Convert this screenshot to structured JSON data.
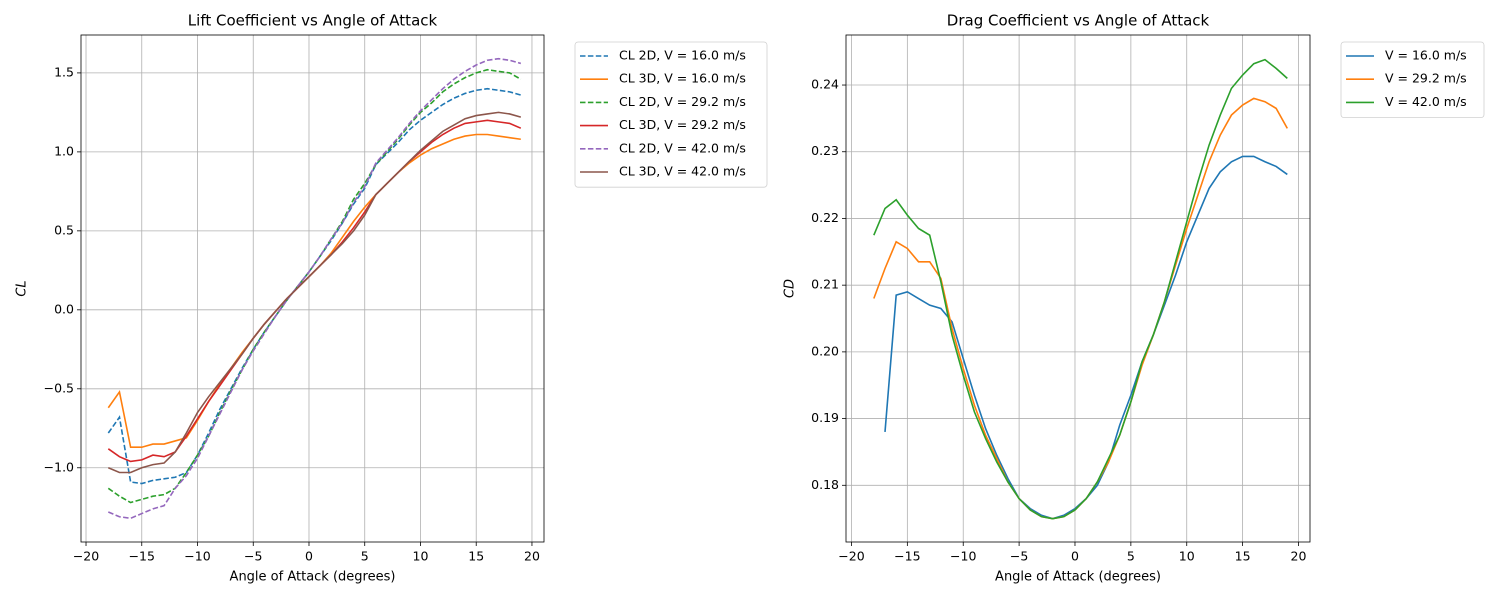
{
  "chart_data": [
    {
      "type": "line",
      "title": "Lift Coefficient vs Angle of Attack",
      "x_label": "Angle of Attack (degrees)",
      "y_label": "CL",
      "grid": true,
      "legend": "outside-right",
      "xlim": [
        -20.45,
        21.08
      ],
      "ylim": [
        -1.47,
        1.74
      ],
      "xticks": [
        {
          "value": -20,
          "label": "−20"
        },
        {
          "value": -15,
          "label": "−15"
        },
        {
          "value": -10,
          "label": "−10"
        },
        {
          "value": -5,
          "label": "−5"
        },
        0,
        5,
        10,
        15,
        20
      ],
      "yticks": [
        {
          "value": -1.0,
          "label": "−1.0"
        },
        {
          "value": -0.5,
          "label": "−0.5"
        },
        {
          "value": 0,
          "label": "0.0"
        },
        0.5,
        {
          "value": 1.0,
          "label": "1.0"
        },
        1.5
      ],
      "x": [
        -18,
        -17,
        -16,
        -15,
        -14,
        -13,
        -12,
        -11,
        -10,
        -9,
        -8,
        -7,
        -6,
        -5,
        -4,
        -3,
        -2,
        -1,
        0,
        1,
        2,
        3,
        4,
        5,
        6,
        7,
        8,
        9,
        10,
        11,
        12,
        13,
        14,
        15,
        16,
        17,
        18,
        19
      ],
      "series": [
        {
          "name": "CL 2D, V = 16.0 m/s",
          "color": "#1f77b4",
          "linestyle": "dashed",
          "values": [
            -0.78,
            -0.68,
            -1.09,
            -1.1,
            -1.08,
            -1.07,
            -1.06,
            -1.03,
            -0.92,
            -0.78,
            -0.63,
            -0.5,
            -0.37,
            -0.25,
            -0.14,
            -0.04,
            0.06,
            0.15,
            0.24,
            0.34,
            0.44,
            0.55,
            0.67,
            0.77,
            0.92,
            0.99,
            1.06,
            1.14,
            1.2,
            1.25,
            1.3,
            1.34,
            1.37,
            1.39,
            1.4,
            1.39,
            1.38,
            1.36
          ]
        },
        {
          "name": "CL 3D, V = 16.0 m/s",
          "color": "#ff7f0e",
          "linestyle": "solid",
          "values": [
            -0.62,
            -0.52,
            -0.87,
            -0.87,
            -0.85,
            -0.85,
            -0.83,
            -0.81,
            -0.7,
            -0.58,
            -0.47,
            -0.37,
            -0.27,
            -0.18,
            -0.09,
            -0.01,
            0.07,
            0.14,
            0.21,
            0.28,
            0.36,
            0.46,
            0.56,
            0.65,
            0.73,
            0.8,
            0.87,
            0.93,
            0.98,
            1.02,
            1.05,
            1.08,
            1.1,
            1.11,
            1.11,
            1.1,
            1.09,
            1.08
          ]
        },
        {
          "name": "CL 2D, V = 29.2 m/s",
          "color": "#2ca02c",
          "linestyle": "dashed",
          "values": [
            -1.13,
            -1.18,
            -1.22,
            -1.2,
            -1.18,
            -1.17,
            -1.13,
            -1.03,
            -0.92,
            -0.8,
            -0.65,
            -0.51,
            -0.38,
            -0.25,
            -0.14,
            -0.04,
            0.06,
            0.15,
            0.24,
            0.34,
            0.45,
            0.56,
            0.7,
            0.8,
            0.92,
            1.0,
            1.08,
            1.17,
            1.25,
            1.31,
            1.38,
            1.43,
            1.47,
            1.5,
            1.52,
            1.51,
            1.5,
            1.46
          ]
        },
        {
          "name": "CL 3D, V = 29.2 m/s",
          "color": "#d62728",
          "linestyle": "solid",
          "values": [
            -0.88,
            -0.93,
            -0.96,
            -0.95,
            -0.92,
            -0.93,
            -0.9,
            -0.8,
            -0.69,
            -0.58,
            -0.48,
            -0.38,
            -0.28,
            -0.18,
            -0.09,
            -0.01,
            0.07,
            0.14,
            0.21,
            0.28,
            0.35,
            0.43,
            0.52,
            0.62,
            0.73,
            0.8,
            0.87,
            0.94,
            1.0,
            1.06,
            1.11,
            1.15,
            1.18,
            1.19,
            1.2,
            1.19,
            1.18,
            1.15
          ]
        },
        {
          "name": "CL 2D, V = 42.0 m/s",
          "color": "#9467bd",
          "linestyle": "dashed",
          "values": [
            -1.28,
            -1.31,
            -1.32,
            -1.29,
            -1.26,
            -1.24,
            -1.13,
            -1.05,
            -0.94,
            -0.8,
            -0.66,
            -0.52,
            -0.38,
            -0.26,
            -0.15,
            -0.04,
            0.06,
            0.15,
            0.24,
            0.34,
            0.45,
            0.55,
            0.68,
            0.78,
            0.93,
            1.01,
            1.09,
            1.18,
            1.26,
            1.33,
            1.4,
            1.46,
            1.51,
            1.55,
            1.58,
            1.59,
            1.58,
            1.56
          ]
        },
        {
          "name": "CL 3D, V = 42.0 m/s",
          "color": "#8c564b",
          "linestyle": "solid",
          "values": [
            -1.0,
            -1.03,
            -1.03,
            -1.0,
            -0.98,
            -0.97,
            -0.9,
            -0.78,
            -0.65,
            -0.55,
            -0.46,
            -0.37,
            -0.28,
            -0.18,
            -0.09,
            -0.01,
            0.07,
            0.14,
            0.21,
            0.28,
            0.35,
            0.42,
            0.5,
            0.6,
            0.73,
            0.8,
            0.87,
            0.94,
            1.01,
            1.07,
            1.13,
            1.17,
            1.21,
            1.23,
            1.24,
            1.25,
            1.24,
            1.22
          ]
        }
      ]
    },
    {
      "type": "line",
      "title": "Drag Coefficient vs Angle of Attack",
      "x_label": "Angle of Attack (degrees)",
      "y_label": "CD",
      "grid": true,
      "legend": "outside-right",
      "xlim": [
        -20.49,
        21.03
      ],
      "ylim": [
        0.1715,
        0.2475
      ],
      "xticks": [
        {
          "value": -20,
          "label": "−20"
        },
        {
          "value": -15,
          "label": "−15"
        },
        {
          "value": -10,
          "label": "−10"
        },
        {
          "value": -5,
          "label": "−5"
        },
        0,
        5,
        10,
        15,
        20
      ],
      "yticks": [
        0.18,
        0.19,
        {
          "value": 0.2,
          "label": "0.20"
        },
        0.21,
        0.22,
        0.23,
        0.24
      ],
      "x": [
        -18,
        -17,
        -16,
        -15,
        -14,
        -13,
        -12,
        -11,
        -10,
        -9,
        -8,
        -7,
        -6,
        -5,
        -4,
        -3,
        -2,
        -1,
        0,
        1,
        2,
        3,
        4,
        5,
        6,
        7,
        8,
        9,
        10,
        11,
        12,
        13,
        14,
        15,
        16,
        17,
        18,
        19
      ],
      "series": [
        {
          "name": "V = 16.0 m/s",
          "color": "#1f77b4",
          "linestyle": "solid",
          "values": [
            null,
            0.188,
            0.2085,
            0.209,
            0.208,
            0.207,
            0.2065,
            0.2045,
            0.199,
            0.1935,
            0.1885,
            0.1845,
            0.181,
            0.178,
            0.1765,
            0.1755,
            0.175,
            0.1755,
            0.1765,
            0.178,
            0.18,
            0.1835,
            0.189,
            0.1935,
            0.1985,
            0.2025,
            0.207,
            0.2115,
            0.2165,
            0.2205,
            0.2245,
            0.227,
            0.2285,
            0.2293,
            0.2293,
            0.2285,
            0.2278,
            0.2266
          ]
        },
        {
          "name": "V = 29.2 m/s",
          "color": "#ff7f0e",
          "linestyle": "solid",
          "values": [
            0.208,
            0.2125,
            0.2165,
            0.2155,
            0.2135,
            0.2135,
            0.211,
            0.2035,
            0.1975,
            0.192,
            0.1875,
            0.184,
            0.1805,
            0.178,
            0.1763,
            0.1753,
            0.175,
            0.1753,
            0.1763,
            0.178,
            0.1805,
            0.1835,
            0.1875,
            0.1925,
            0.198,
            0.2025,
            0.2075,
            0.213,
            0.2185,
            0.2235,
            0.2285,
            0.2325,
            0.2355,
            0.237,
            0.238,
            0.2375,
            0.2365,
            0.2335
          ]
        },
        {
          "name": "V = 42.0 m/s",
          "color": "#2ca02c",
          "linestyle": "solid",
          "values": [
            0.2175,
            0.2215,
            0.2228,
            0.2205,
            0.2185,
            0.2175,
            0.2105,
            0.2025,
            0.1965,
            0.191,
            0.187,
            0.1835,
            0.1805,
            0.178,
            0.1763,
            0.1753,
            0.175,
            0.1753,
            0.1763,
            0.178,
            0.1805,
            0.184,
            0.1875,
            0.1925,
            0.1985,
            0.2025,
            0.2075,
            0.2135,
            0.2195,
            0.2255,
            0.231,
            0.2355,
            0.2395,
            0.2415,
            0.2432,
            0.2438,
            0.2425,
            0.241
          ]
        }
      ]
    }
  ]
}
